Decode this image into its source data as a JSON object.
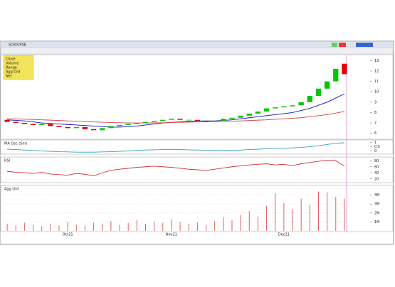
{
  "window": {
    "symbol": "SDXX/PSE",
    "legend": [
      "Close",
      "Volume",
      "Range",
      "Agg Ord",
      "Net"
    ]
  },
  "chart_data": [
    {
      "type": "candlestick",
      "up_color": "#00c800",
      "down_color": "#e00000",
      "open": [
        7.3,
        7.1,
        7.0,
        6.9,
        6.8,
        6.9,
        6.7,
        6.6,
        6.5,
        6.6,
        6.4,
        6.3,
        6.5,
        6.7,
        6.8,
        6.9,
        7.0,
        7.1,
        7.2,
        7.3,
        7.4,
        7.3,
        7.3,
        7.2,
        7.1,
        7.2,
        7.4,
        7.5,
        7.7,
        7.9,
        8.1,
        8.4,
        8.5,
        8.6,
        8.7,
        9.0,
        9.6,
        10.3,
        11.0,
        12.7
      ],
      "close": [
        7.1,
        7.0,
        6.9,
        6.8,
        6.9,
        6.7,
        6.6,
        6.5,
        6.6,
        6.4,
        6.3,
        6.5,
        6.7,
        6.8,
        6.9,
        7.0,
        7.1,
        7.2,
        7.3,
        7.4,
        7.3,
        7.3,
        7.2,
        7.1,
        7.2,
        7.4,
        7.5,
        7.7,
        7.9,
        8.1,
        8.4,
        8.5,
        8.6,
        8.7,
        9.0,
        9.6,
        10.3,
        11.0,
        12.2,
        11.7
      ],
      "lines": [
        {
          "color": "#1010c0",
          "values": [
            7.3,
            7.25,
            7.2,
            7.1,
            7.0,
            6.95,
            6.9,
            6.85,
            6.8,
            6.75,
            6.7,
            6.65,
            6.6,
            6.6,
            6.65,
            6.7,
            6.8,
            6.9,
            7.0,
            7.05,
            7.1,
            7.15,
            7.2,
            7.2,
            7.2,
            7.25,
            7.3,
            7.4,
            7.5,
            7.6,
            7.7,
            7.8,
            7.9,
            8.0,
            8.2,
            8.4,
            8.7,
            9.0,
            9.4,
            9.8
          ]
        },
        {
          "color": "#d04040",
          "values": [
            7.4,
            7.38,
            7.36,
            7.33,
            7.3,
            7.27,
            7.24,
            7.2,
            7.17,
            7.14,
            7.1,
            7.07,
            7.04,
            7.02,
            7.0,
            7.0,
            7.0,
            7.01,
            7.02,
            7.04,
            7.06,
            7.08,
            7.1,
            7.12,
            7.14,
            7.16,
            7.18,
            7.2,
            7.23,
            7.27,
            7.3,
            7.35,
            7.4,
            7.45,
            7.5,
            7.6,
            7.7,
            7.8,
            7.95,
            8.1
          ]
        }
      ],
      "ylim": [
        5.5,
        13.5
      ],
      "yticks": [
        6,
        7,
        8,
        9,
        10,
        11,
        12,
        13
      ]
    },
    {
      "type": "line",
      "title": "MA Osc (Sm)",
      "color": "#30a0c0",
      "values": [
        0.2,
        0.15,
        0.1,
        0.05,
        0,
        -0.05,
        -0.1,
        -0.12,
        -0.15,
        -0.15,
        -0.15,
        -0.12,
        -0.1,
        -0.05,
        0,
        0.05,
        0.1,
        0.12,
        0.15,
        0.15,
        0.15,
        0.12,
        0.1,
        0.08,
        0.05,
        0.05,
        0.08,
        0.1,
        0.15,
        0.2,
        0.25,
        0.3,
        0.32,
        0.35,
        0.4,
        0.5,
        0.6,
        0.75,
        0.9,
        0.95
      ],
      "ylim": [
        -0.3,
        1.2
      ],
      "yticks": [
        0,
        0.5,
        1
      ]
    },
    {
      "type": "line",
      "title": "RSI",
      "color": "#d03030",
      "values": [
        45,
        42,
        40,
        38,
        42,
        36,
        34,
        32,
        38,
        35,
        30,
        40,
        48,
        52,
        55,
        58,
        60,
        62,
        60,
        58,
        55,
        52,
        50,
        48,
        52,
        56,
        60,
        63,
        66,
        68,
        70,
        66,
        68,
        64,
        70,
        74,
        78,
        82,
        80,
        62
      ],
      "ylim": [
        10,
        90
      ],
      "yticks": [
        20,
        40,
        60,
        80
      ]
    },
    {
      "type": "bar",
      "title": "Agg Ord",
      "color": "#e06060",
      "categories": [
        null,
        null,
        null,
        null,
        null,
        null,
        null,
        "Oct21",
        null,
        null,
        null,
        null,
        null,
        null,
        null,
        null,
        null,
        null,
        null,
        "Nov21",
        null,
        null,
        null,
        null,
        null,
        null,
        null,
        null,
        null,
        null,
        null,
        null,
        "Dec21",
        null,
        null,
        null,
        null,
        null,
        null,
        null
      ],
      "values": [
        0.8,
        0.6,
        0.9,
        0.7,
        0.5,
        0.8,
        0.6,
        1.0,
        0.7,
        0.6,
        0.9,
        0.8,
        1.1,
        0.7,
        0.9,
        1.2,
        0.8,
        1.0,
        0.9,
        1.3,
        1.0,
        0.8,
        0.9,
        0.7,
        1.1,
        1.5,
        1.2,
        1.8,
        2.2,
        1.6,
        2.8,
        4.2,
        3.1,
        2.4,
        3.6,
        2.9,
        4.4,
        4.3,
        3.8,
        3.6
      ],
      "ylim": [
        0,
        5
      ],
      "yticks": [
        {
          "value": 1,
          "label": "1M"
        },
        {
          "value": 2,
          "label": "2M"
        },
        {
          "value": 3,
          "label": "3M"
        },
        {
          "value": 4,
          "label": "4M"
        }
      ],
      "grid": true
    }
  ]
}
